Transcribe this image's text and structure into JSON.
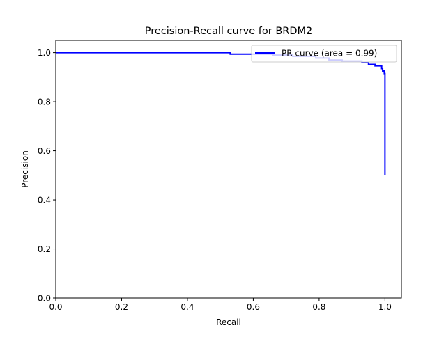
{
  "chart_data": {
    "type": "line",
    "title": "Precision-Recall curve for BRDM2",
    "xlabel": "Recall",
    "ylabel": "Precision",
    "xlim": [
      0.0,
      1.05
    ],
    "ylim": [
      0.0,
      1.05
    ],
    "xticks": [
      0.0,
      0.2,
      0.4,
      0.6,
      0.8,
      1.0
    ],
    "xtick_labels": [
      "0.0",
      "0.2",
      "0.4",
      "0.6",
      "0.8",
      "1.0"
    ],
    "yticks": [
      0.0,
      0.2,
      0.4,
      0.6,
      0.8,
      1.0
    ],
    "ytick_labels": [
      "0.0",
      "0.2",
      "0.4",
      "0.6",
      "0.8",
      "1.0"
    ],
    "grid": false,
    "legend_position": "top-right",
    "series": [
      {
        "name": "PR curve (area = 0.99)",
        "color": "#0000ff",
        "step": true,
        "points": [
          [
            0.0,
            1.0
          ],
          [
            0.53,
            1.0
          ],
          [
            0.53,
            0.994
          ],
          [
            0.66,
            0.994
          ],
          [
            0.66,
            0.99
          ],
          [
            0.72,
            0.99
          ],
          [
            0.72,
            0.985
          ],
          [
            0.79,
            0.985
          ],
          [
            0.79,
            0.978
          ],
          [
            0.83,
            0.978
          ],
          [
            0.83,
            0.97
          ],
          [
            0.87,
            0.97
          ],
          [
            0.87,
            0.966
          ],
          [
            0.93,
            0.966
          ],
          [
            0.93,
            0.96
          ],
          [
            0.95,
            0.96
          ],
          [
            0.95,
            0.952
          ],
          [
            0.97,
            0.952
          ],
          [
            0.97,
            0.946
          ],
          [
            0.99,
            0.946
          ],
          [
            0.99,
            0.935
          ],
          [
            0.993,
            0.935
          ],
          [
            0.993,
            0.925
          ],
          [
            0.998,
            0.925
          ],
          [
            0.998,
            0.915
          ],
          [
            1.0,
            0.915
          ],
          [
            1.0,
            0.5
          ]
        ]
      }
    ]
  }
}
